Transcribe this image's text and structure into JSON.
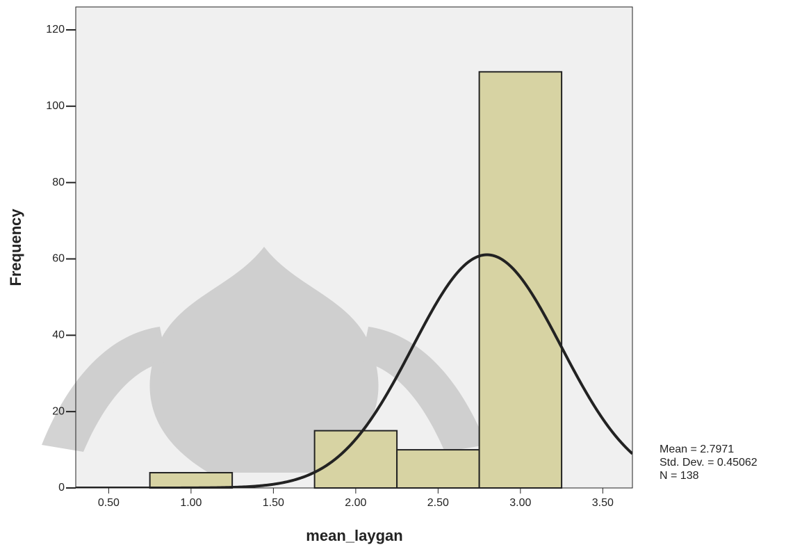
{
  "chart_data": {
    "type": "histogram",
    "x_label": "mean_laygan",
    "y_label": "Frequency",
    "bins": [
      0.75,
      1.25,
      1.75,
      2.25,
      2.75,
      3.25
    ],
    "values": [
      4,
      0,
      15,
      10,
      109
    ],
    "color": "#d7d3a3",
    "xlim": [
      0.3,
      3.68
    ],
    "ylim": [
      0,
      126
    ],
    "xticks": [
      {
        "value": 0.5,
        "label": "0.50"
      },
      {
        "value": 1,
        "label": "1.00"
      },
      {
        "value": 1.5,
        "label": "1.50"
      },
      {
        "value": 2,
        "label": "2.00"
      },
      {
        "value": 2.5,
        "label": "2.50"
      },
      {
        "value": 3,
        "label": "3.00"
      },
      {
        "value": 3.5,
        "label": "3.50"
      }
    ],
    "yticks": [
      0,
      20,
      40,
      60,
      80,
      100,
      120
    ],
    "normal_curve": true,
    "stats": [
      {
        "value": 2.7971,
        "label": "Mean = 2.7971"
      },
      {
        "value": 0.45062,
        "label": "Std. Dev. = 0.45062"
      },
      {
        "value": 138,
        "label": "N = 138"
      }
    ]
  }
}
